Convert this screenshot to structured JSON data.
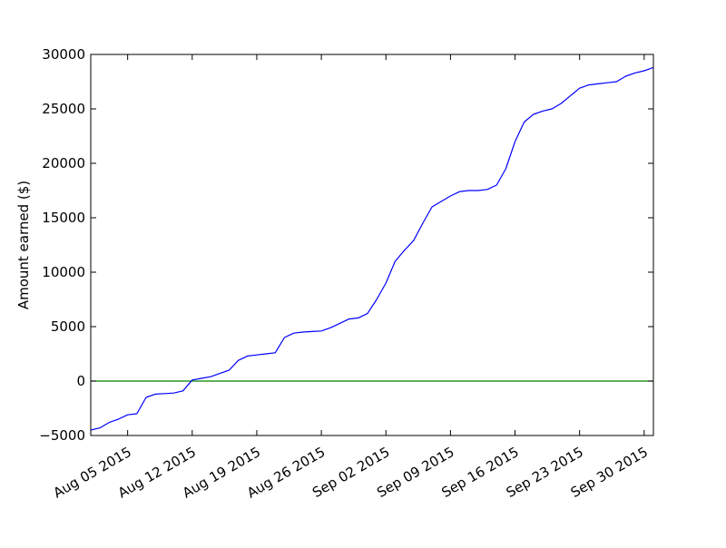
{
  "chart_data": {
    "type": "line",
    "title": "",
    "xlabel": "",
    "ylabel": "Amount earned ($)",
    "xlim": [
      "2015-08-01",
      "2015-10-01"
    ],
    "ylim": [
      -5000,
      30000
    ],
    "x_ticks": [
      "2015-08-05",
      "2015-08-12",
      "2015-08-19",
      "2015-08-26",
      "2015-09-02",
      "2015-09-09",
      "2015-09-16",
      "2015-09-23",
      "2015-09-30"
    ],
    "x_tick_labels": [
      "Aug 05 2015",
      "Aug 12 2015",
      "Aug 19 2015",
      "Aug 26 2015",
      "Sep 02 2015",
      "Sep 09 2015",
      "Sep 16 2015",
      "Sep 23 2015",
      "Sep 30 2015"
    ],
    "y_ticks": [
      -5000,
      0,
      5000,
      10000,
      15000,
      20000,
      25000,
      30000
    ],
    "y_tick_labels": [
      "−5000",
      "0",
      "5000",
      "10000",
      "15000",
      "20000",
      "25000",
      "30000"
    ],
    "grid": false,
    "legend": false,
    "series": [
      {
        "color": "#0000ff",
        "x": [
          "2015-08-01",
          "2015-08-02",
          "2015-08-03",
          "2015-08-04",
          "2015-08-05",
          "2015-08-06",
          "2015-08-07",
          "2015-08-08",
          "2015-08-09",
          "2015-08-10",
          "2015-08-11",
          "2015-08-12",
          "2015-08-13",
          "2015-08-14",
          "2015-08-15",
          "2015-08-16",
          "2015-08-17",
          "2015-08-18",
          "2015-08-19",
          "2015-08-20",
          "2015-08-21",
          "2015-08-22",
          "2015-08-23",
          "2015-08-24",
          "2015-08-25",
          "2015-08-26",
          "2015-08-27",
          "2015-08-28",
          "2015-08-29",
          "2015-08-30",
          "2015-08-31",
          "2015-09-01",
          "2015-09-02",
          "2015-09-03",
          "2015-09-04",
          "2015-09-05",
          "2015-09-06",
          "2015-09-07",
          "2015-09-08",
          "2015-09-09",
          "2015-09-10",
          "2015-09-11",
          "2015-09-12",
          "2015-09-13",
          "2015-09-14",
          "2015-09-15",
          "2015-09-16",
          "2015-09-17",
          "2015-09-18",
          "2015-09-19",
          "2015-09-20",
          "2015-09-21",
          "2015-09-22",
          "2015-09-23",
          "2015-09-24",
          "2015-09-25",
          "2015-09-26",
          "2015-09-27",
          "2015-09-28",
          "2015-09-29",
          "2015-09-30",
          "2015-10-01"
        ],
        "y": [
          -4500,
          -4300,
          -3800,
          -3500,
          -3100,
          -3000,
          -1500,
          -1200,
          -1150,
          -1100,
          -900,
          100,
          250,
          400,
          700,
          1000,
          1900,
          2300,
          2400,
          2500,
          2600,
          4000,
          4400,
          4500,
          4550,
          4600,
          4900,
          5300,
          5700,
          5800,
          6200,
          7500,
          9000,
          11000,
          12000,
          12900,
          14500,
          16000,
          16500,
          17000,
          17400,
          17500,
          17500,
          17600,
          18000,
          19500,
          22000,
          23800,
          24500,
          24800,
          25000,
          25500,
          26200,
          26900,
          27200,
          27300,
          27400,
          27500,
          28000,
          28300,
          28500,
          28800
        ]
      },
      {
        "color": "#008000",
        "x": [
          "2015-08-01",
          "2015-10-01"
        ],
        "y": [
          0,
          0
        ]
      }
    ]
  }
}
